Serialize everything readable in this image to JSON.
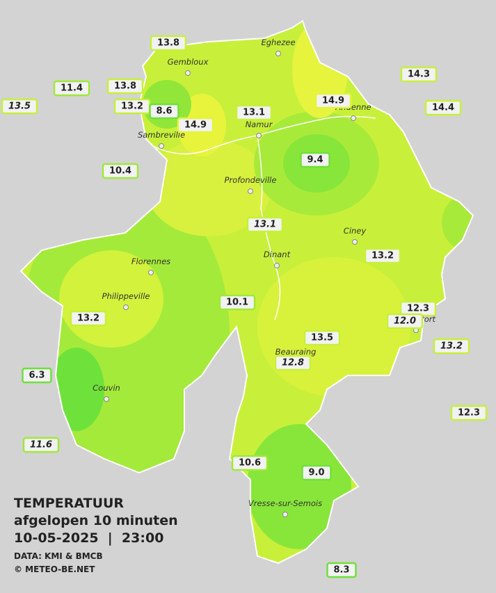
{
  "title": {
    "line1": "TEMPERATUUR",
    "line2": "afgelopen 10 minuten",
    "line3": "10-05-2025  |  23:00",
    "source": "DATA: KMI & BMCB",
    "credit": "© METEO-BE.NET"
  },
  "cities": [
    "Eghezee",
    "Gembloux",
    "Andenne",
    "Namur",
    "Sambreville",
    "Profondeville",
    "Ciney",
    "Dinant",
    "Florennes",
    "Philippeville",
    "Rochefort",
    "Beauraing",
    "Couvin",
    "Vresse-sur-Semois"
  ],
  "stations": [
    "13.8",
    "11.4",
    "13.8",
    "13.2",
    "8.6",
    "14.9",
    "13.1",
    "14.9",
    "14.3",
    "14.4",
    "13.5",
    "10.4",
    "9.4",
    "13.1",
    "13.2",
    "10.1",
    "12.3",
    "12.0",
    "13.2",
    "13.5",
    "13.2",
    "12.8",
    "6.3",
    "12.3",
    "11.6",
    "10.6",
    "9.0",
    "8.3"
  ]
}
